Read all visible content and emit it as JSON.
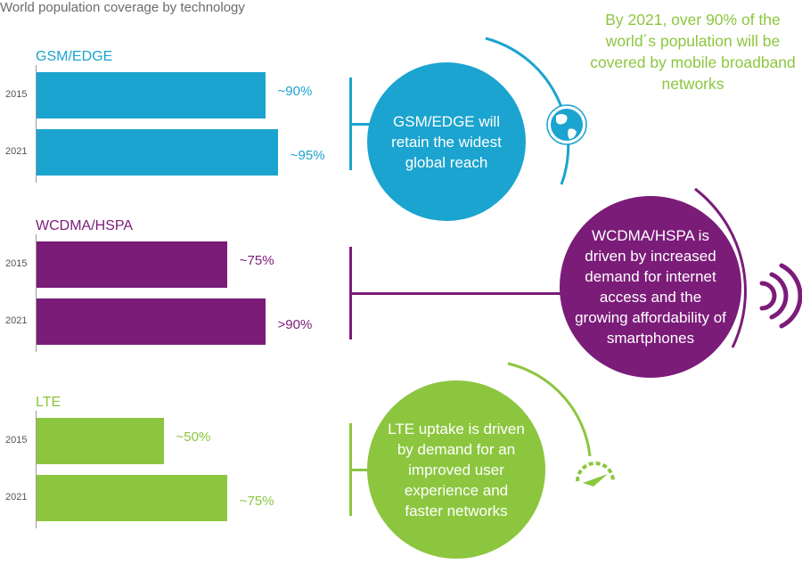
{
  "title": "World population coverage by technology",
  "callout": "By 2021, over 90% of the world´s population will be covered by mobile broadband networks",
  "colors": {
    "gsm": "#1ba4cf",
    "wcdma": "#7b1c79",
    "lte": "#8cc63f",
    "axis": "#9a9a9a"
  },
  "icons": {
    "gsm": "globe-icon",
    "wcdma": "signal-waves-icon",
    "lte": "speedometer-icon"
  },
  "chart_data": {
    "type": "bar",
    "orientation": "horizontal",
    "title": "World population coverage by technology",
    "groups": [
      {
        "name": "GSM/EDGE",
        "bars": [
          {
            "year": "2015",
            "value": 90,
            "label": "~90%"
          },
          {
            "year": "2021",
            "value": 95,
            "label": "~95%"
          }
        ],
        "note": "GSM/EDGE will retain the widest global reach"
      },
      {
        "name": "WCDMA/HSPA",
        "bars": [
          {
            "year": "2015",
            "value": 75,
            "label": "~75%"
          },
          {
            "year": "2021",
            "value": 90,
            "label": ">90%"
          }
        ],
        "note": "WCDMA/HSPA is driven by increased demand for internet access and the growing affordability of smartphones"
      },
      {
        "name": "LTE",
        "bars": [
          {
            "year": "2015",
            "value": 50,
            "label": "~50%"
          },
          {
            "year": "2021",
            "value": 75,
            "label": "~75%"
          }
        ],
        "note": "LTE uptake is driven by demand for an improved user experience and faster networks"
      }
    ]
  }
}
